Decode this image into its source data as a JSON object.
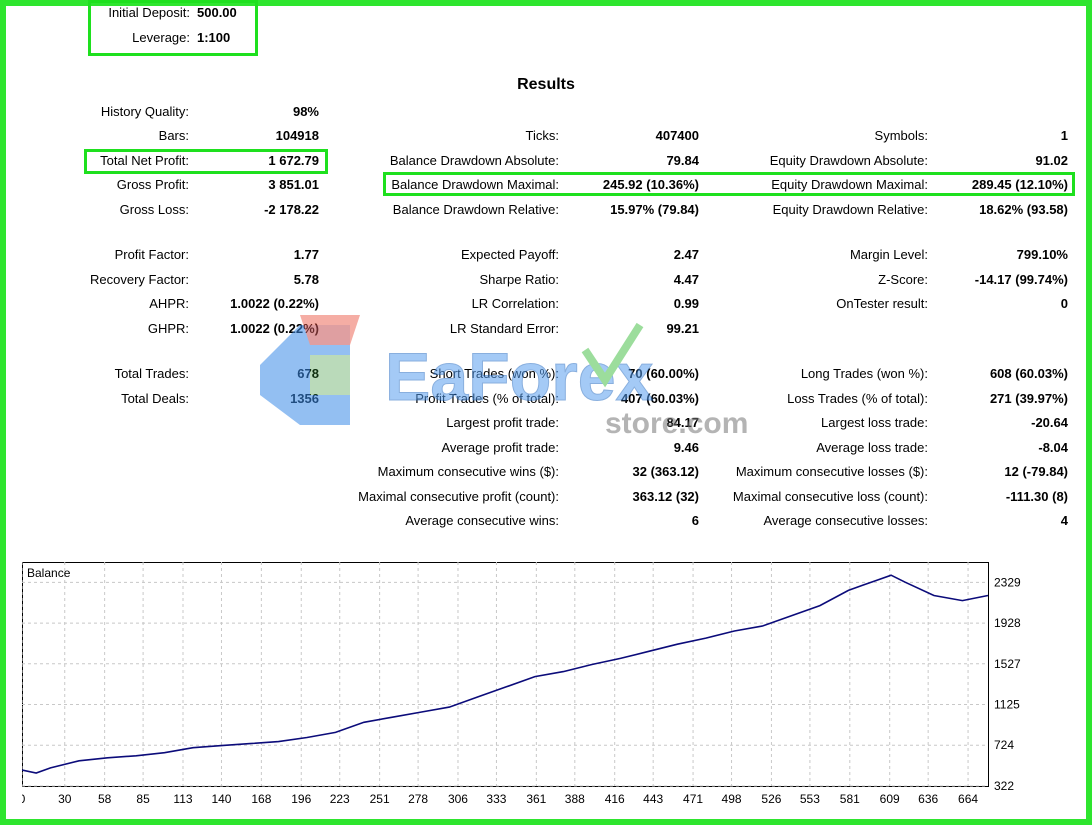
{
  "settings": {
    "initial_deposit_label": "Initial Deposit:",
    "initial_deposit_value": "500.00",
    "leverage_label": "Leverage:",
    "leverage_value": "1:100"
  },
  "results_title": "Results",
  "col1": [
    {
      "label": "History Quality:",
      "value": "98%"
    },
    {
      "label": "Bars:",
      "value": "104918"
    },
    {
      "label": "Total Net Profit:",
      "value": "1 672.79"
    },
    {
      "label": "Gross Profit:",
      "value": "3 851.01"
    },
    {
      "label": "Gross Loss:",
      "value": "-2 178.22"
    },
    {
      "label": "Profit Factor:",
      "value": "1.77"
    },
    {
      "label": "Recovery Factor:",
      "value": "5.78"
    },
    {
      "label": "AHPR:",
      "value": "1.0022 (0.22%)"
    },
    {
      "label": "GHPR:",
      "value": "1.0022 (0.22%)"
    },
    {
      "label": "Total Trades:",
      "value": "678"
    },
    {
      "label": "Total Deals:",
      "value": "1356"
    }
  ],
  "col2": [
    {
      "label": "Ticks:",
      "value": "407400"
    },
    {
      "label": "Balance Drawdown Absolute:",
      "value": "79.84"
    },
    {
      "label": "Balance Drawdown Maximal:",
      "value": "245.92 (10.36%)"
    },
    {
      "label": "Balance Drawdown Relative:",
      "value": "15.97% (79.84)"
    },
    {
      "label": "Expected Payoff:",
      "value": "2.47"
    },
    {
      "label": "Sharpe Ratio:",
      "value": "4.47"
    },
    {
      "label": "LR Correlation:",
      "value": "0.99"
    },
    {
      "label": "LR Standard Error:",
      "value": "99.21"
    },
    {
      "label": "Short Trades (won %):",
      "value": "70 (60.00%)"
    },
    {
      "label": "Profit Trades (% of total):",
      "value": "407 (60.03%)"
    },
    {
      "label": "Largest profit trade:",
      "value": "84.17"
    },
    {
      "label": "Average profit trade:",
      "value": "9.46"
    },
    {
      "label": "Maximum consecutive wins ($):",
      "value": "32 (363.12)"
    },
    {
      "label": "Maximal consecutive profit (count):",
      "value": "363.12 (32)"
    },
    {
      "label": "Average consecutive wins:",
      "value": "6"
    }
  ],
  "col3": [
    {
      "label": "Symbols:",
      "value": "1"
    },
    {
      "label": "Equity Drawdown Absolute:",
      "value": "91.02"
    },
    {
      "label": "Equity Drawdown Maximal:",
      "value": "289.45 (12.10%)"
    },
    {
      "label": "Equity Drawdown Relative:",
      "value": "18.62% (93.58)"
    },
    {
      "label": "Margin Level:",
      "value": "799.10%"
    },
    {
      "label": "Z-Score:",
      "value": "-14.17 (99.74%)"
    },
    {
      "label": "OnTester result:",
      "value": "0"
    },
    {
      "label": "Long Trades (won %):",
      "value": "608 (60.03%)"
    },
    {
      "label": "Loss Trades (% of total):",
      "value": "271 (39.97%)"
    },
    {
      "label": "Largest loss trade:",
      "value": "-20.64"
    },
    {
      "label": "Average loss trade:",
      "value": "-8.04"
    },
    {
      "label": "Maximum consecutive losses ($):",
      "value": "12 (-79.84)"
    },
    {
      "label": "Maximal consecutive loss (count):",
      "value": "-111.30 (8)"
    },
    {
      "label": "Average consecutive losses:",
      "value": "4"
    }
  ],
  "watermark": {
    "main": "EaForex",
    "sub": "store.com"
  },
  "colors": {
    "frame": "#2ee52e",
    "line": "#0b0b7a",
    "grid": "#c8c8c8"
  },
  "chart_data": {
    "type": "line",
    "title": "Balance",
    "xlabel": "",
    "ylabel": "",
    "x_ticks": [
      0,
      30,
      58,
      85,
      113,
      140,
      168,
      196,
      223,
      251,
      278,
      306,
      333,
      361,
      388,
      416,
      443,
      471,
      498,
      526,
      553,
      581,
      609,
      636,
      664
    ],
    "y_ticks": [
      322,
      724,
      1125,
      1527,
      1928,
      2329
    ],
    "xlim": [
      0,
      678
    ],
    "ylim": [
      322,
      2530
    ],
    "series": [
      {
        "x": [
          0,
          10,
          20,
          40,
          60,
          80,
          100,
          120,
          140,
          160,
          180,
          200,
          220,
          240,
          260,
          280,
          300,
          320,
          340,
          360,
          380,
          400,
          420,
          440,
          460,
          480,
          500,
          520,
          540,
          560,
          580,
          590,
          600,
          610,
          620,
          640,
          660,
          678
        ],
        "y": [
          480,
          450,
          500,
          570,
          600,
          620,
          650,
          700,
          720,
          740,
          760,
          800,
          850,
          950,
          1000,
          1050,
          1100,
          1200,
          1300,
          1400,
          1450,
          1520,
          1580,
          1650,
          1720,
          1780,
          1850,
          1900,
          2000,
          2100,
          2250,
          2300,
          2350,
          2400,
          2330,
          2200,
          2150,
          2200
        ]
      }
    ]
  }
}
